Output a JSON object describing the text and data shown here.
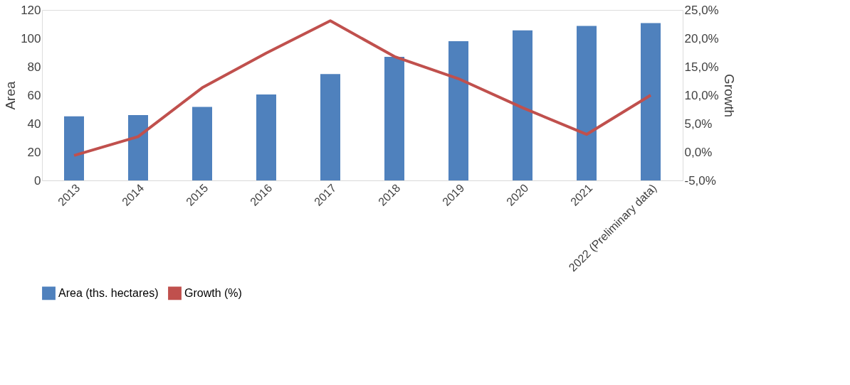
{
  "chart_data": {
    "type": "bar",
    "ylabel": "Area",
    "y2label": "Growth",
    "categories": [
      "2013",
      "2014",
      "2015",
      "2016",
      "2017",
      "2018",
      "2019",
      "2020",
      "2021",
      "2022 (Preliminary data)"
    ],
    "series": [
      {
        "name": "Area (ths. hectares)",
        "color": "#4f81bd",
        "values": [
          45.1,
          46,
          51.8,
          60.5,
          74.9,
          87,
          98,
          105.6,
          108.7,
          110.8
        ]
      },
      {
        "name": "Growth (%)",
        "type": "line",
        "axis": "y2",
        "color": "#c0504d",
        "values": [
          -0.6,
          2.7,
          11.3,
          17.4,
          23.1,
          16.8,
          12.9,
          7.8,
          3.1,
          10.0
        ]
      }
    ],
    "ylim": [
      0,
      120
    ],
    "yticks": [
      0,
      20,
      40,
      60,
      80,
      100,
      120
    ],
    "y2lim": [
      -5,
      25
    ],
    "y2ticks": [
      {
        "value": -5,
        "label": "-5,0%"
      },
      {
        "value": 0,
        "label": "0,0%"
      },
      {
        "value": 5,
        "label": "5,0%"
      },
      {
        "value": 10,
        "label": "10,0%"
      },
      {
        "value": 15,
        "label": "15,0%"
      },
      {
        "value": 20,
        "label": "20,0%"
      },
      {
        "value": 25,
        "label": "25,0%"
      }
    ],
    "grid": false,
    "legend": "bottom",
    "marker": "none",
    "line_style": "solid"
  }
}
